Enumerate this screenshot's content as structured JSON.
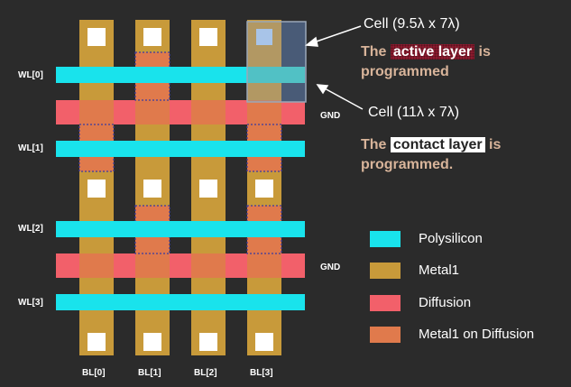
{
  "wordlines": [
    "WL[0]",
    "WL[1]",
    "WL[2]",
    "WL[3]"
  ],
  "bitlines": [
    "BL[0]",
    "BL[1]",
    "BL[2]",
    "BL[3]"
  ],
  "gnd_labels": [
    "GND",
    "GND"
  ],
  "annotations": {
    "cell1": "Cell (9.5λ x 7λ)",
    "cell2": "Cell (11λ x 7λ)",
    "active_pre": "The ",
    "active_hl": "active layer",
    "active_post": " is",
    "active_line2": "programmed",
    "contact_pre": "The ",
    "contact_hl": "contact layer",
    "contact_post": " is",
    "contact_line2": "programmed."
  },
  "legend": [
    {
      "label": "Polysilicon",
      "color": "#19e3ec"
    },
    {
      "label": "Metal1",
      "color": "#c89a3a"
    },
    {
      "label": "Diffusion",
      "color": "#f2606a"
    },
    {
      "label": "Metal1 on Diffusion",
      "color": "#e07a4c"
    }
  ],
  "colors": {
    "background": "#2b2b2b",
    "polysilicon": "#19e3ec",
    "metal1": "#c89a3a",
    "diffusion": "#f2606a",
    "metal1_on_diffusion": "#e07a4c",
    "contact": "#ffffff",
    "active_cell": "#0a2a5e"
  }
}
